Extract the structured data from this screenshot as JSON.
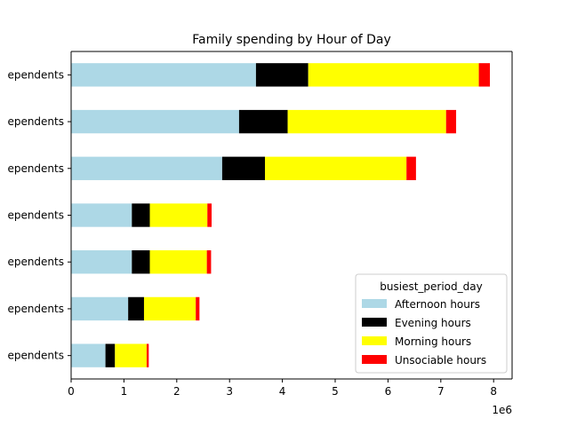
{
  "chart_data": {
    "type": "bar",
    "orientation": "horizontal",
    "stacked": true,
    "title": "Family spending by Hour of Day",
    "xlabel": "",
    "ylabel": "",
    "x_offset_label": "1e6",
    "xlim": [
      0,
      8350000
    ],
    "x_ticks": [
      0,
      1,
      2,
      3,
      4,
      5,
      6,
      7,
      8
    ],
    "x_tick_scale": 1000000,
    "grid": false,
    "categories_top_to_bottom": [
      "ependents",
      "ependents",
      "ependents",
      "ependents",
      "ependents",
      "ependents",
      "ependents"
    ],
    "legend": {
      "title": "busiest_period_day",
      "placement": "lower-right"
    },
    "series": [
      {
        "name": "Afternoon hours",
        "color": "#add8e6",
        "values": [
          3500000,
          3180000,
          2860000,
          1150000,
          1150000,
          1080000,
          650000
        ]
      },
      {
        "name": "Evening hours",
        "color": "#000000",
        "values": [
          990000,
          920000,
          810000,
          340000,
          340000,
          300000,
          180000
        ]
      },
      {
        "name": "Morning hours",
        "color": "#ffff00",
        "values": [
          3230000,
          3000000,
          2680000,
          1090000,
          1080000,
          980000,
          600000
        ]
      },
      {
        "name": "Unsociable hours",
        "color": "#ff0000",
        "values": [
          210000,
          190000,
          180000,
          80000,
          80000,
          70000,
          40000
        ]
      }
    ]
  }
}
